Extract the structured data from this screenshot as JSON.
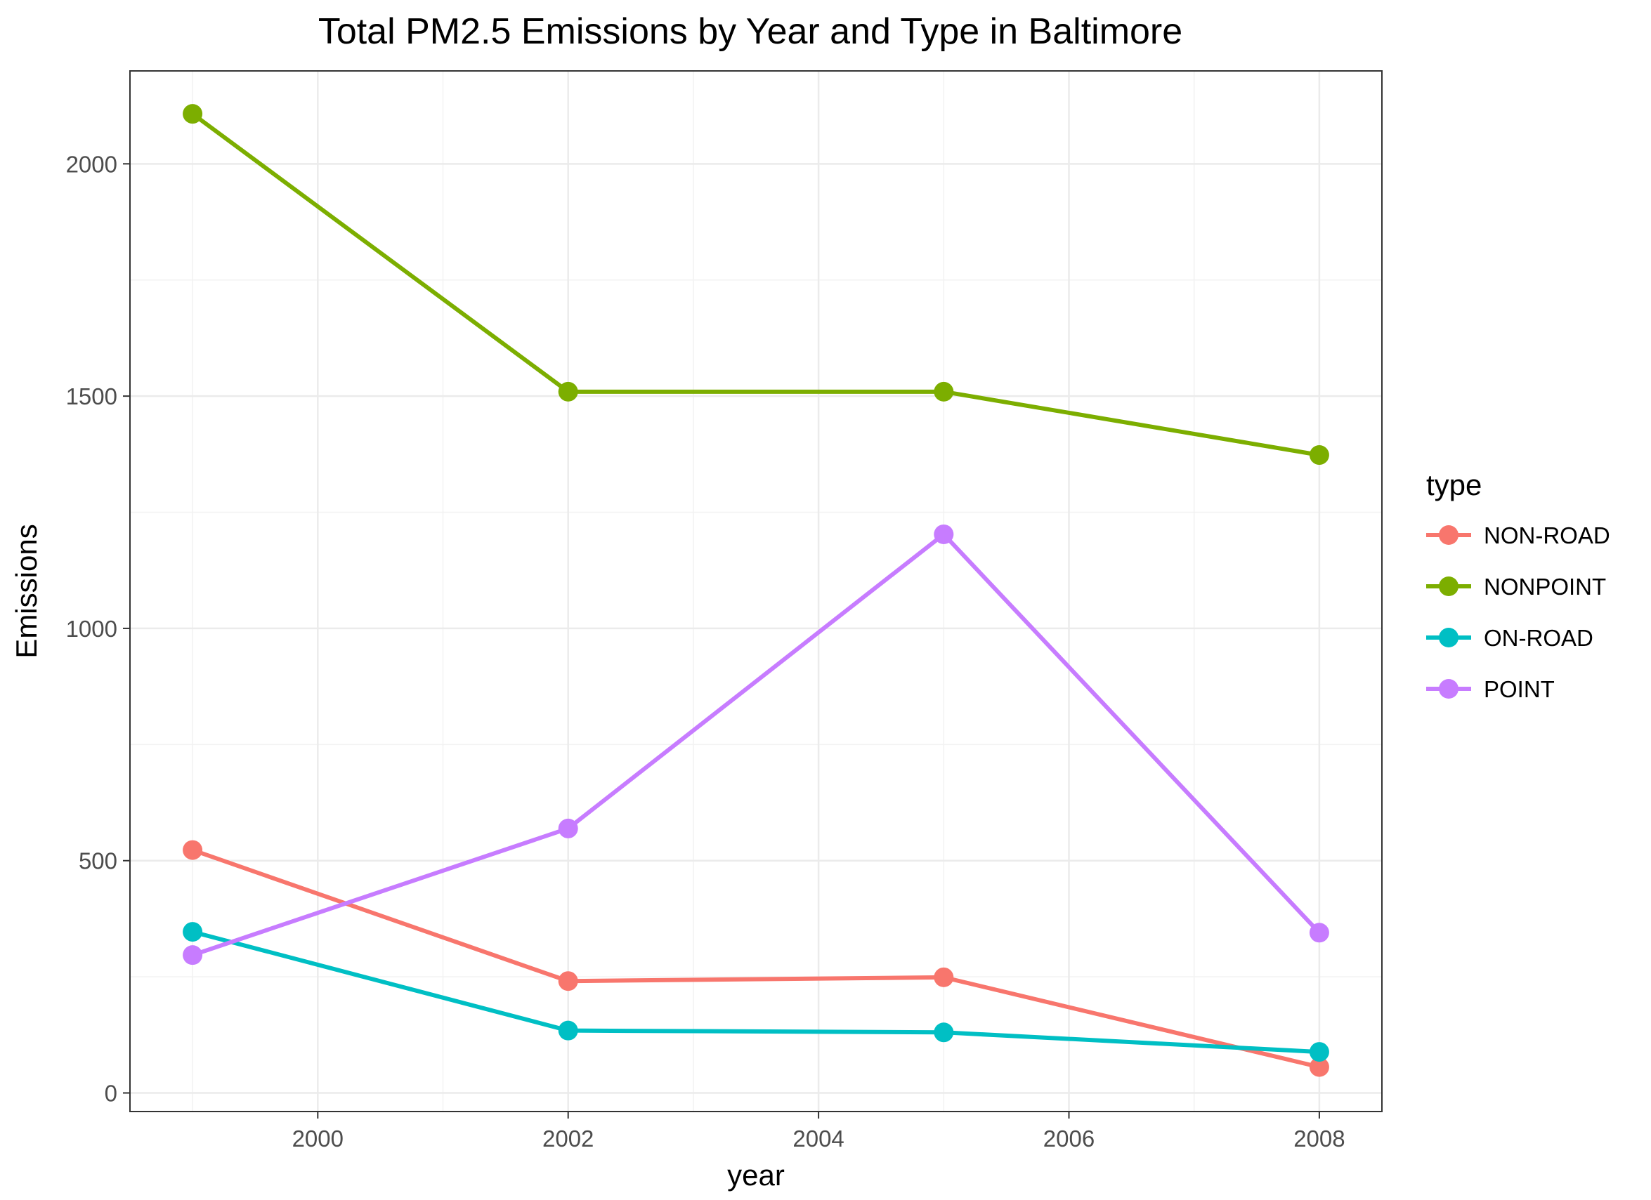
{
  "chart_data": {
    "type": "line",
    "title": "Total PM2.5 Emissions by Year and Type in Baltimore",
    "xlabel": "year",
    "ylabel": "Emissions",
    "x": [
      1999,
      2002,
      2005,
      2008
    ],
    "xlim": [
      1998.5,
      2008.5
    ],
    "ylim": [
      -40,
      2200
    ],
    "xticks": [
      2000,
      2002,
      2004,
      2006,
      2008
    ],
    "xtick_labels": [
      "2000",
      "2002",
      "2004",
      "2006",
      "2008"
    ],
    "yticks": [
      0,
      500,
      1000,
      1500,
      2000
    ],
    "ytick_labels": [
      "0",
      "500",
      "1000",
      "1500",
      "2000"
    ],
    "grid": true,
    "legend": {
      "title": "type",
      "position": "right"
    },
    "series": [
      {
        "name": "NON-ROAD",
        "color": "#F8766D",
        "values": [
          522.9,
          240.8,
          248.9,
          55.8
        ]
      },
      {
        "name": "NONPOINT",
        "color": "#7CAE00",
        "values": [
          2107.6,
          1509.5,
          1509.5,
          1373.2
        ]
      },
      {
        "name": "ON-ROAD",
        "color": "#00BFC4",
        "values": [
          346.8,
          134.3,
          130.4,
          88.3
        ]
      },
      {
        "name": "POINT",
        "color": "#C77CFF",
        "values": [
          296.8,
          569.3,
          1202.5,
          344.98
        ]
      }
    ]
  }
}
